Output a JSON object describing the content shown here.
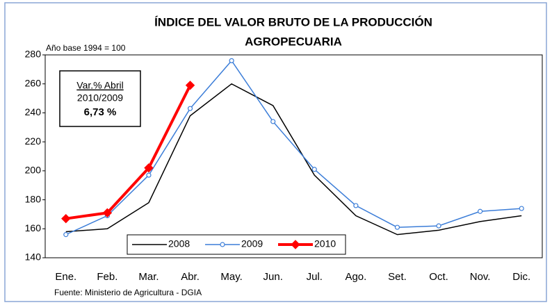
{
  "chart_data": {
    "type": "line",
    "title": [
      "ÍNDICE DEL VALOR BRUTO DE LA PRODUCCIÓN",
      "AGROPECUARIA"
    ],
    "subtitle": "Año base 1994 = 100",
    "annotation": [
      "Var.% Abril",
      "2010/2009",
      "6,73 %"
    ],
    "source": "Fuente: Ministerio de Agricultura - DGIA",
    "categories": [
      "Ene.",
      "Feb.",
      "Mar.",
      "Abr.",
      "May.",
      "Jun.",
      "Jul.",
      "Ago.",
      "Set.",
      "Oct.",
      "Nov.",
      "Dic."
    ],
    "series": [
      {
        "name": "2008",
        "color": "#000000",
        "marker": "none",
        "values": [
          158,
          160,
          178,
          238,
          260,
          245,
          197,
          169,
          156,
          159,
          165,
          169
        ]
      },
      {
        "name": "2009",
        "color": "#3b7dd8",
        "marker": "circle",
        "values": [
          156,
          169,
          197,
          243,
          276,
          234,
          201,
          176,
          161,
          162,
          172,
          174
        ]
      },
      {
        "name": "2010",
        "color": "#ff0000",
        "marker": "diamond",
        "values": [
          167,
          171,
          202,
          259,
          null,
          null,
          null,
          null,
          null,
          null,
          null,
          null
        ]
      }
    ],
    "ylim": [
      140,
      280
    ],
    "yticks": [
      140,
      160,
      180,
      200,
      220,
      240,
      260,
      280
    ],
    "grid": false,
    "legend": "bottom"
  }
}
